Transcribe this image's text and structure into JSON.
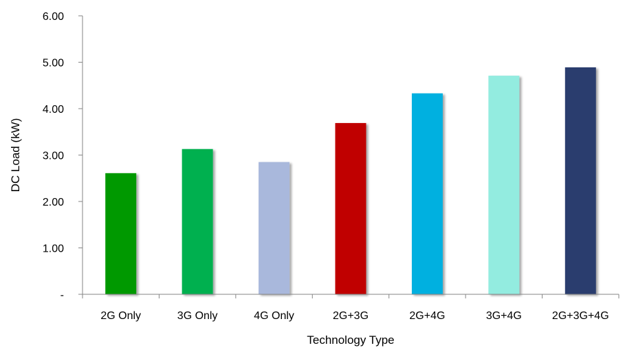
{
  "chart_data": {
    "type": "bar",
    "title": "",
    "xlabel": "Technology Type",
    "ylabel": "DC Load  (kW)",
    "categories": [
      "2G Only",
      "3G Only",
      "4G Only",
      "2G+3G",
      "2G+4G",
      "3G+4G",
      "2G+3G+4G"
    ],
    "values": [
      2.61,
      3.13,
      2.85,
      3.69,
      4.33,
      4.71,
      4.89
    ],
    "colors": [
      "#009900",
      "#00B050",
      "#A9B8DC",
      "#C00000",
      "#00B0E0",
      "#93ECE0",
      "#2C3E6E"
    ],
    "ylim": [
      0,
      6
    ],
    "yticks": [
      0,
      1,
      2,
      3,
      4,
      5,
      6
    ],
    "ytick_labels": [
      "-",
      "1.00",
      "2.00",
      "3.00",
      "4.00",
      "5.00",
      "6.00"
    ],
    "grid": false,
    "legend": "none"
  }
}
